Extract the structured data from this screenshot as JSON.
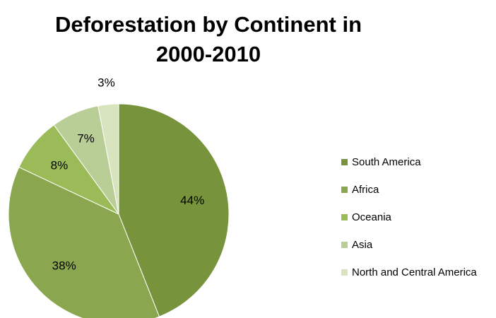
{
  "chart_data": {
    "type": "pie",
    "title": "Deforestation by Continent in 2000-2010",
    "slices": [
      {
        "label": "South America",
        "value": 44,
        "display": "44%",
        "color": "#77933c"
      },
      {
        "label": "Africa",
        "value": 38,
        "display": "38%",
        "color": "#8aa64e"
      },
      {
        "label": "Oceania",
        "value": 8,
        "display": "8%",
        "color": "#9bbb59"
      },
      {
        "label": "Asia",
        "value": 7,
        "display": "7%",
        "color": "#b9cd96"
      },
      {
        "label": "North and Central America",
        "value": 3,
        "display": "3%",
        "color": "#d7e4bd"
      }
    ],
    "legend_position": "right"
  }
}
